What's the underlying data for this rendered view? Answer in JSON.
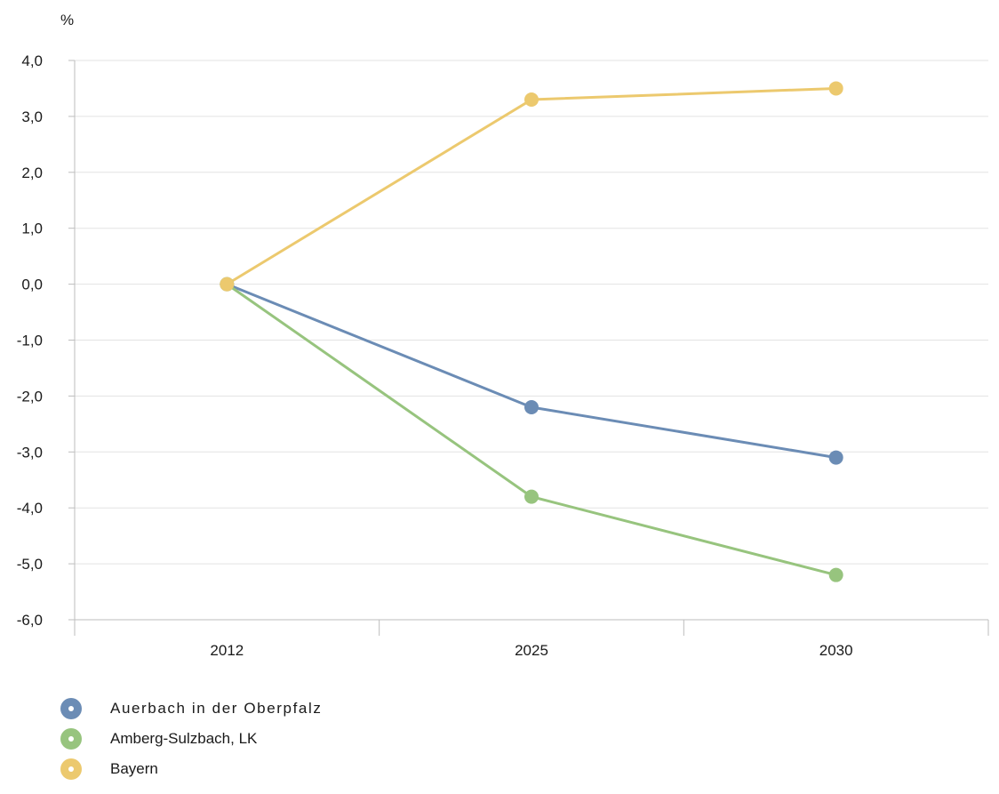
{
  "chart_data": {
    "type": "line",
    "ylabel": "%",
    "x": [
      "2012",
      "2025",
      "2030"
    ],
    "ylim": [
      -6,
      4
    ],
    "yticks": [
      "4,0",
      "3,0",
      "2,0",
      "1,0",
      "0,0",
      "-1,0",
      "-2,0",
      "-3,0",
      "-4,0",
      "-5,0",
      "-6,0"
    ],
    "grid": true,
    "legend_position": "bottom-left",
    "series": [
      {
        "name": "Auerbach in der Oberpfalz",
        "color": "#6b8cb5",
        "values": [
          0.0,
          -2.2,
          -3.1
        ]
      },
      {
        "name": "Amberg-Sulzbach, LK",
        "color": "#97c47e",
        "values": [
          0.0,
          -3.8,
          -5.2
        ]
      },
      {
        "name": "Bayern",
        "color": "#ecc96e",
        "values": [
          0.0,
          3.3,
          3.5
        ]
      }
    ]
  }
}
